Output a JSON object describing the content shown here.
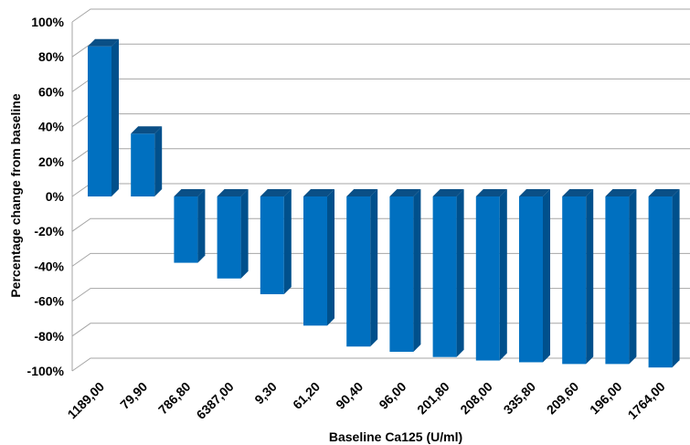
{
  "chart_data": {
    "type": "bar",
    "three_d": true,
    "xlabel": "Baseline Ca125 (U/ml)",
    "ylabel": "Percentage change from baseline",
    "categories": [
      "1189,00",
      "79,90",
      "786,80",
      "6387,00",
      "9,30",
      "61,20",
      "90,40",
      "96,00",
      "201,80",
      "208,00",
      "335,80",
      "209,60",
      "196,00",
      "1764,00"
    ],
    "values": [
      86,
      36,
      -38,
      -47,
      -56,
      -74,
      -86,
      -89,
      -92,
      -94,
      -95,
      -96,
      -96,
      -98
    ],
    "ylim": [
      -100,
      100
    ],
    "yticks": [
      100,
      80,
      60,
      40,
      20,
      0,
      -20,
      -40,
      -60,
      -80,
      -100
    ],
    "ytick_labels": [
      "100%",
      "80%",
      "60%",
      "40%",
      "20%",
      "0%",
      "-20%",
      "-40%",
      "-60%",
      "-80%",
      "-100%"
    ],
    "grid": true,
    "bar_color": "#0070C0",
    "bar_side_color": "#00508C",
    "bar_top_color": "#0A4F86",
    "grid_color": "#A6A6A6"
  }
}
